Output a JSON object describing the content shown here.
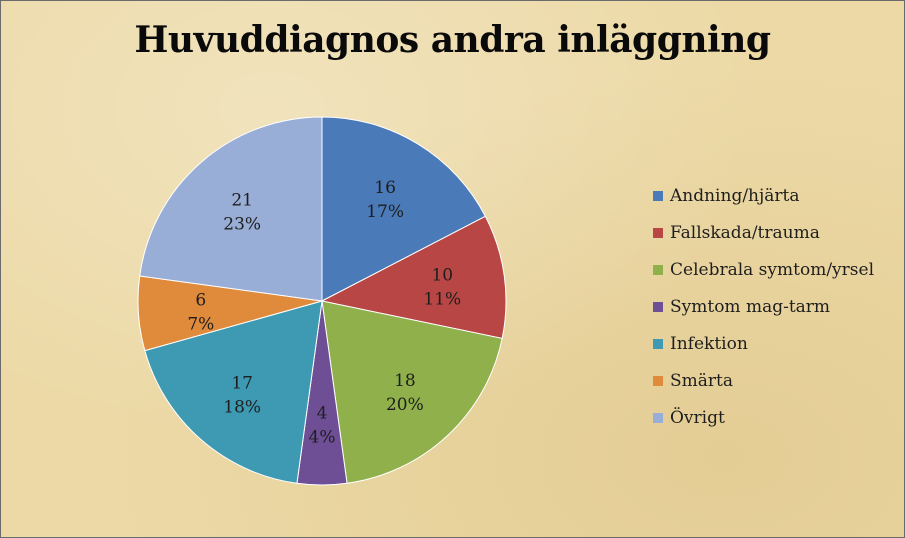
{
  "chart_data": {
    "type": "pie",
    "title": "Huvuddiagnos andra inläggning",
    "legend_position": "right",
    "slices": [
      {
        "label": "Andning/hjärta",
        "value": 16,
        "percent": "17%",
        "color": "#4a7ab8"
      },
      {
        "label": "Fallskada/trauma",
        "value": 10,
        "percent": "11%",
        "color": "#b84644"
      },
      {
        "label": "Celebrala symtom/yrsel",
        "value": 18,
        "percent": "20%",
        "color": "#8fb04a"
      },
      {
        "label": "Symtom mag-tarm",
        "value": 4,
        "percent": "4%",
        "color": "#6e4f96"
      },
      {
        "label": "Infektion",
        "value": 17,
        "percent": "18%",
        "color": "#3e9ab2"
      },
      {
        "label": "Smärta",
        "value": 6,
        "percent": "7%",
        "color": "#e08a3c"
      },
      {
        "label": "Övrigt",
        "value": 21,
        "percent": "23%",
        "color": "#98aed6"
      }
    ]
  }
}
